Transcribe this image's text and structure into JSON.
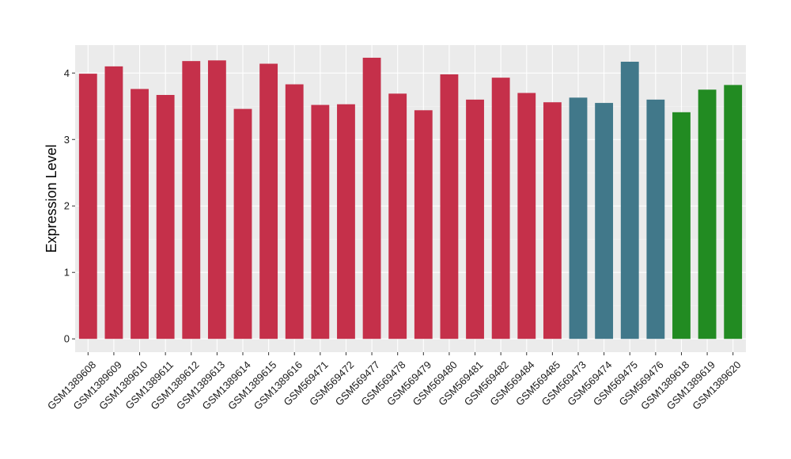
{
  "chart_data": {
    "type": "bar",
    "title": "",
    "xlabel": "",
    "ylabel": "Expression Level",
    "ylim": [
      -0.2,
      4.42
    ],
    "yticks": [
      0,
      1,
      2,
      3,
      4
    ],
    "yticks_labels": [
      "0",
      "1",
      "2",
      "3",
      "4"
    ],
    "grid": true,
    "legend": "none",
    "colors": {
      "panel_bg": "#ebebeb",
      "grid_major": "#ffffff",
      "grid_minor": "#f4f4f4",
      "group_a": "#c5304a",
      "group_b": "#41788a",
      "group_c": "#228b22"
    },
    "categories": [
      "GSM1389608",
      "GSM1389609",
      "GSM1389610",
      "GSM1389611",
      "GSM1389612",
      "GSM1389613",
      "GSM1389614",
      "GSM1389615",
      "GSM1389616",
      "GSM569471",
      "GSM569472",
      "GSM569477",
      "GSM569478",
      "GSM569479",
      "GSM569480",
      "GSM569481",
      "GSM569482",
      "GSM569484",
      "GSM569485",
      "GSM569473",
      "GSM569474",
      "GSM569475",
      "GSM569476",
      "GSM1389618",
      "GSM1389619",
      "GSM1389620"
    ],
    "values": [
      3.99,
      4.1,
      3.76,
      3.67,
      4.18,
      4.19,
      3.46,
      4.14,
      3.83,
      3.52,
      3.53,
      4.23,
      3.69,
      3.44,
      3.98,
      3.6,
      3.93,
      3.7,
      3.56,
      3.63,
      3.55,
      4.17,
      3.6,
      3.41,
      3.75,
      3.82
    ],
    "groups": [
      "group_a",
      "group_a",
      "group_a",
      "group_a",
      "group_a",
      "group_a",
      "group_a",
      "group_a",
      "group_a",
      "group_a",
      "group_a",
      "group_a",
      "group_a",
      "group_a",
      "group_a",
      "group_a",
      "group_a",
      "group_a",
      "group_a",
      "group_b",
      "group_b",
      "group_b",
      "group_b",
      "group_c",
      "group_c",
      "group_c"
    ]
  }
}
